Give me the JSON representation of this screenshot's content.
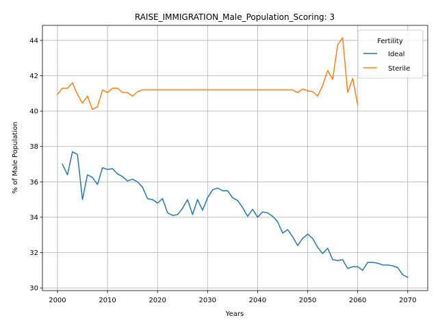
{
  "chart_data": {
    "type": "line",
    "title": "RAISE_IMMIGRATION_Male_Population_Scoring: 3",
    "xlabel": "Years",
    "ylabel": "% of Male Population",
    "xlim": [
      1997,
      2074
    ],
    "ylim": [
      29.85,
      44.85
    ],
    "xticks": [
      2000,
      2010,
      2020,
      2030,
      2040,
      2050,
      2060,
      2070
    ],
    "yticks": [
      30,
      32,
      34,
      36,
      38,
      40,
      42,
      44
    ],
    "grid": true,
    "legend": {
      "title": "Fertility",
      "placement": "top-right"
    },
    "series": [
      {
        "name": "Ideal",
        "color": "#1f77b4",
        "x": [
          2001,
          2002,
          2003,
          2004,
          2005,
          2006,
          2007,
          2008,
          2009,
          2010,
          2011,
          2012,
          2013,
          2014,
          2015,
          2016,
          2017,
          2018,
          2019,
          2020,
          2021,
          2022,
          2023,
          2024,
          2025,
          2026,
          2027,
          2028,
          2029,
          2030,
          2031,
          2032,
          2033,
          2034,
          2035,
          2036,
          2037,
          2038,
          2039,
          2040,
          2041,
          2042,
          2043,
          2044,
          2045,
          2046,
          2047,
          2048,
          2049,
          2050,
          2051,
          2052,
          2053,
          2054,
          2055,
          2056,
          2057,
          2058,
          2059,
          2060,
          2061,
          2062,
          2063,
          2064,
          2065,
          2066,
          2067,
          2068,
          2069,
          2070
        ],
        "values": [
          37.0,
          36.4,
          37.7,
          37.55,
          35.0,
          36.4,
          36.25,
          35.85,
          36.8,
          36.7,
          36.75,
          36.45,
          36.3,
          36.05,
          36.15,
          36.0,
          35.7,
          35.05,
          35.0,
          34.8,
          35.05,
          34.25,
          34.1,
          34.15,
          34.5,
          35.0,
          34.15,
          35.0,
          34.4,
          35.1,
          35.55,
          35.65,
          35.5,
          35.5,
          35.1,
          34.95,
          34.55,
          34.05,
          34.45,
          34.0,
          34.3,
          34.25,
          34.05,
          33.75,
          33.1,
          33.3,
          32.9,
          32.4,
          32.8,
          33.05,
          32.8,
          32.3,
          31.95,
          32.25,
          31.6,
          31.55,
          31.6,
          31.1,
          31.2,
          31.2,
          31.0,
          31.45,
          31.45,
          31.4,
          31.3,
          31.3,
          31.25,
          31.15,
          30.75,
          30.6
        ]
      },
      {
        "name": "Sterile",
        "color": "#ff7f0e",
        "x": [
          2000,
          2001,
          2002,
          2003,
          2004,
          2005,
          2006,
          2007,
          2008,
          2009,
          2010,
          2011,
          2012,
          2013,
          2014,
          2015,
          2016,
          2017,
          2018,
          2019,
          2020,
          2021,
          2022,
          2023,
          2024,
          2025,
          2026,
          2027,
          2028,
          2029,
          2030,
          2031,
          2032,
          2033,
          2034,
          2035,
          2036,
          2037,
          2038,
          2039,
          2040,
          2041,
          2042,
          2043,
          2044,
          2045,
          2046,
          2047,
          2048,
          2049,
          2050,
          2051,
          2052,
          2053,
          2054,
          2055,
          2056,
          2057,
          2058,
          2059,
          2060
        ],
        "values": [
          40.95,
          41.3,
          41.3,
          41.6,
          40.95,
          40.45,
          40.85,
          40.1,
          40.25,
          41.2,
          41.05,
          41.3,
          41.3,
          41.05,
          41.05,
          40.85,
          41.1,
          41.2,
          41.2,
          41.2,
          41.2,
          41.2,
          41.2,
          41.2,
          41.2,
          41.2,
          41.2,
          41.2,
          41.2,
          41.2,
          41.2,
          41.2,
          41.2,
          41.2,
          41.2,
          41.2,
          41.2,
          41.2,
          41.2,
          41.2,
          41.2,
          41.2,
          41.2,
          41.2,
          41.2,
          41.2,
          41.2,
          41.2,
          41.05,
          41.25,
          41.15,
          41.1,
          40.85,
          41.45,
          42.3,
          41.8,
          43.75,
          44.15,
          41.05,
          41.85,
          40.35
        ]
      }
    ]
  }
}
